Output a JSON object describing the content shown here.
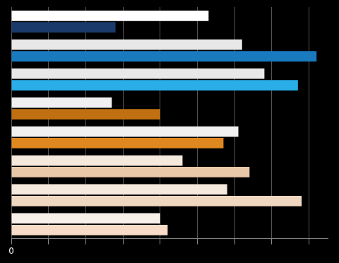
{
  "chart_data": {
    "type": "bar",
    "orientation": "horizontal",
    "categories": [
      null,
      null,
      null,
      null,
      null,
      null,
      null,
      null
    ],
    "series": [
      {
        "values": [
          53,
          62,
          68,
          27,
          61,
          46,
          58,
          40
        ],
        "colors": [
          "#ffffff",
          "#e8e8e8",
          "#e8e8e8",
          "#f0f0f0",
          "#f0f0f0",
          "#f5e8dc",
          "#f5e8dc",
          "#f8efe8"
        ]
      },
      {
        "values": [
          28,
          82,
          77,
          40,
          57,
          64,
          78,
          42
        ],
        "colors": [
          "#1a3a6b",
          "#1a7abf",
          "#29aee8",
          "#c07010",
          "#e08820",
          "#e8c8a8",
          "#f0d8c0",
          "#f8dcc8"
        ]
      }
    ],
    "xlim": [
      0,
      85
    ],
    "xticks": [
      0,
      {
        "value": 10,
        "label": null
      },
      {
        "value": 20,
        "label": null
      },
      {
        "value": 30,
        "label": null
      },
      {
        "value": 40,
        "label": null
      },
      {
        "value": 50,
        "label": null
      },
      {
        "value": 60,
        "label": null
      },
      {
        "value": 70,
        "label": null
      },
      {
        "value": 80,
        "label": null
      }
    ],
    "grid": true,
    "tick_labels": "x"
  }
}
